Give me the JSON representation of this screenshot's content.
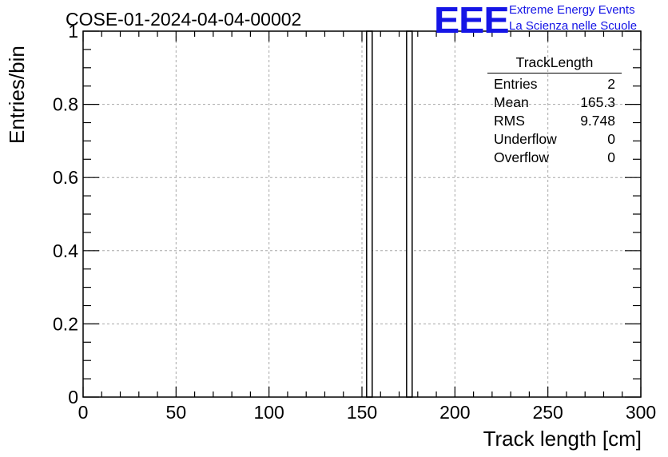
{
  "header": {
    "title": "COSE-01-2024-04-04-00002",
    "logo_text": "EEE",
    "logo_line1": "Extreme Energy Events",
    "logo_line2": "La Scienza nelle Scuole"
  },
  "stats_box": {
    "title": "TrackLength",
    "rows": [
      {
        "label": "Entries",
        "value": "2"
      },
      {
        "label": "Mean",
        "value": "165.3"
      },
      {
        "label": "RMS",
        "value": "9.748"
      },
      {
        "label": "Underflow",
        "value": "0"
      },
      {
        "label": "Overflow",
        "value": "0"
      }
    ]
  },
  "colors": {
    "logo": "#1515e6",
    "frame": "#000000",
    "grid": "#a8a8a8",
    "bars": "#000000"
  },
  "chart_data": {
    "type": "bar",
    "title": "COSE-01-2024-04-04-00002",
    "xlabel": "Track length [cm]",
    "ylabel": "Entries/bin",
    "xlim": [
      0,
      300
    ],
    "ylim": [
      0,
      1
    ],
    "grid": true,
    "x_ticks": [
      "0",
      "50",
      "100",
      "150",
      "200",
      "250",
      "300"
    ],
    "y_ticks": [
      "0",
      "0.2",
      "0.4",
      "0.6",
      "0.8",
      "1"
    ],
    "bins": [
      {
        "x_low": 152.5,
        "x_high": 155.5,
        "value": 1
      },
      {
        "x_low": 174.0,
        "x_high": 177.0,
        "value": 1
      }
    ]
  }
}
